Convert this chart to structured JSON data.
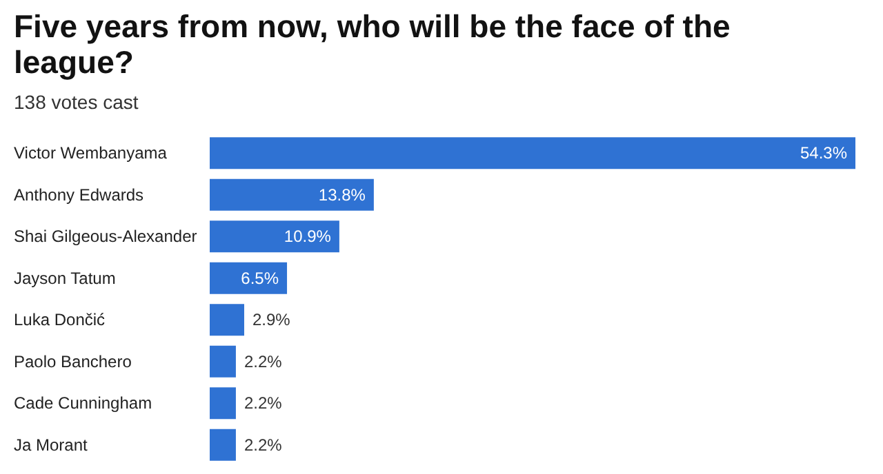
{
  "chart_data": {
    "type": "bar",
    "orientation": "horizontal",
    "title": "Five years from now, who will be the face of the league?",
    "subtitle": "138 votes cast",
    "categories": [
      "Victor Wembanyama",
      "Anthony Edwards",
      "Shai Gilgeous-Alexander",
      "Jayson Tatum",
      "Luka Dončić",
      "Paolo Banchero",
      "Cade Cunningham",
      "Ja Morant"
    ],
    "values": [
      54.3,
      13.8,
      10.9,
      6.5,
      2.9,
      2.2,
      2.2,
      2.2
    ],
    "value_labels": [
      "54.3%",
      "13.8%",
      "10.9%",
      "6.5%",
      "2.9%",
      "2.2%",
      "2.2%",
      "2.2%"
    ],
    "color": "#2f72d3"
  }
}
